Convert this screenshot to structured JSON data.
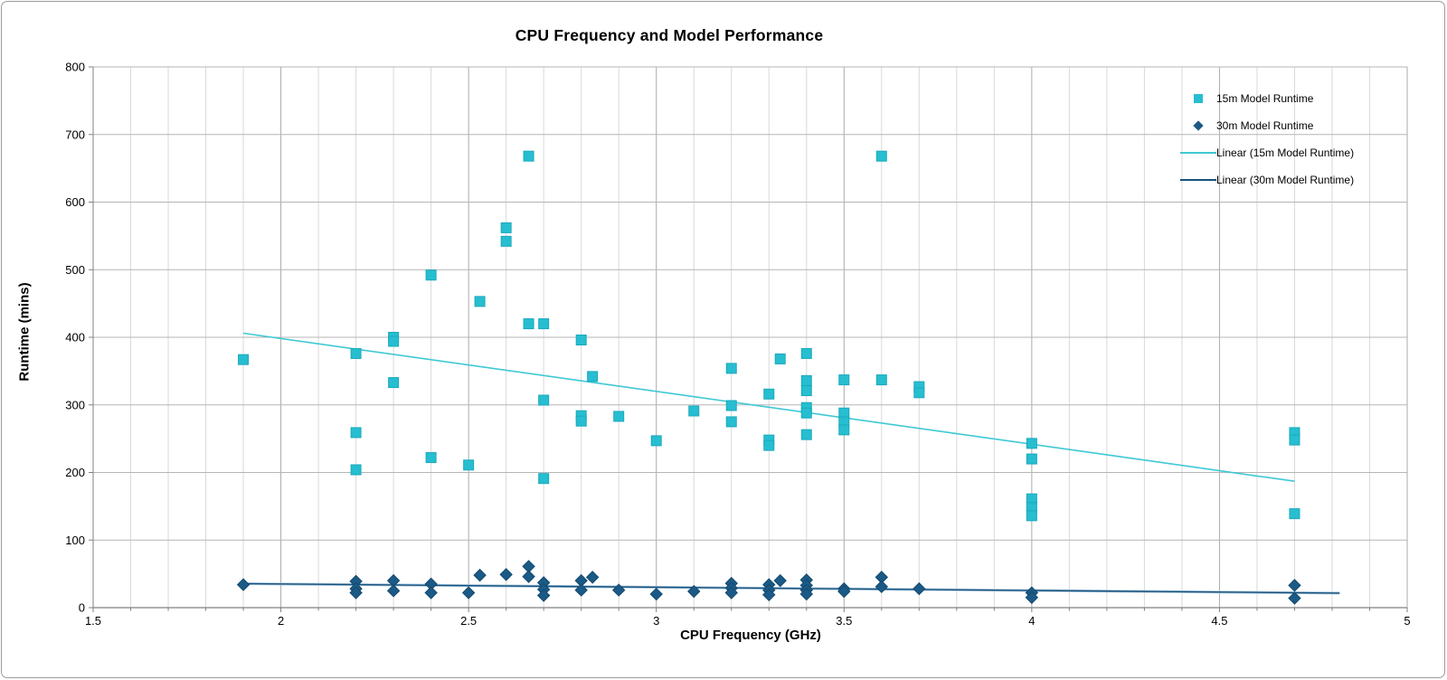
{
  "window": {
    "background": "#ffffff",
    "frame_border_color": "#9b9b9b"
  },
  "chart_data": {
    "type": "scatter",
    "title": "CPU Frequency and Model Performance",
    "xlabel": "CPU Frequency (GHz)",
    "ylabel": "Runtime (mins)",
    "xlim": [
      1.5,
      5
    ],
    "ylim": [
      0,
      800
    ],
    "x_major_step": 0.5,
    "x_minor_step": 0.1,
    "y_major_step": 100,
    "grid": true,
    "legend_position": "top-right",
    "x_ticks": [
      "1.5",
      "2",
      "2.5",
      "3",
      "3.5",
      "4",
      "4.5",
      "5"
    ],
    "y_ticks": [
      "0",
      "100",
      "200",
      "300",
      "400",
      "500",
      "600",
      "700",
      "800"
    ],
    "axis_colors": {
      "axis_line": "#808080",
      "major_grid": "#ababab",
      "minor_grid": "#d9d9d9",
      "horizontal_grid": "#b5b5b5"
    },
    "series": [
      {
        "name": "15m Model Runtime",
        "marker": "square",
        "fill": "#26bed0",
        "stroke": "#1ca9bd",
        "points": [
          [
            1.9,
            367
          ],
          [
            2.2,
            376
          ],
          [
            2.2,
            259
          ],
          [
            2.2,
            204
          ],
          [
            2.3,
            400
          ],
          [
            2.3,
            394
          ],
          [
            2.3,
            333
          ],
          [
            2.4,
            492
          ],
          [
            2.4,
            222
          ],
          [
            2.5,
            211
          ],
          [
            2.53,
            453
          ],
          [
            2.6,
            562
          ],
          [
            2.6,
            542
          ],
          [
            2.66,
            668
          ],
          [
            2.66,
            420
          ],
          [
            2.7,
            420
          ],
          [
            2.7,
            307
          ],
          [
            2.7,
            191
          ],
          [
            2.8,
            396
          ],
          [
            2.8,
            284
          ],
          [
            2.8,
            276
          ],
          [
            2.83,
            342
          ],
          [
            2.9,
            283
          ],
          [
            3.0,
            247
          ],
          [
            3.1,
            291
          ],
          [
            3.2,
            354
          ],
          [
            3.2,
            299
          ],
          [
            3.2,
            275
          ],
          [
            3.3,
            316
          ],
          [
            3.3,
            248
          ],
          [
            3.3,
            240
          ],
          [
            3.33,
            368
          ],
          [
            3.4,
            376
          ],
          [
            3.4,
            336
          ],
          [
            3.4,
            321
          ],
          [
            3.4,
            296
          ],
          [
            3.4,
            288
          ],
          [
            3.4,
            256
          ],
          [
            3.5,
            337
          ],
          [
            3.5,
            288
          ],
          [
            3.5,
            275
          ],
          [
            3.5,
            263
          ],
          [
            3.6,
            668
          ],
          [
            3.6,
            337
          ],
          [
            3.7,
            327
          ],
          [
            3.7,
            318
          ],
          [
            4.0,
            243
          ],
          [
            4.0,
            220
          ],
          [
            4.0,
            161
          ],
          [
            4.0,
            148
          ],
          [
            4.0,
            136
          ],
          [
            4.7,
            259
          ],
          [
            4.7,
            248
          ],
          [
            4.7,
            139
          ]
        ]
      },
      {
        "name": "30m Model Runtime",
        "marker": "diamond",
        "fill": "#1b5a86",
        "stroke": "#14496e",
        "points": [
          [
            1.9,
            34
          ],
          [
            2.2,
            39
          ],
          [
            2.2,
            28
          ],
          [
            2.2,
            22
          ],
          [
            2.3,
            40
          ],
          [
            2.3,
            25
          ],
          [
            2.4,
            35
          ],
          [
            2.4,
            22
          ],
          [
            2.5,
            22
          ],
          [
            2.53,
            48
          ],
          [
            2.6,
            49
          ],
          [
            2.66,
            61
          ],
          [
            2.66,
            46
          ],
          [
            2.7,
            37
          ],
          [
            2.7,
            27
          ],
          [
            2.7,
            18
          ],
          [
            2.8,
            40
          ],
          [
            2.8,
            26
          ],
          [
            2.83,
            45
          ],
          [
            2.9,
            26
          ],
          [
            3.0,
            20
          ],
          [
            3.1,
            24
          ],
          [
            3.2,
            36
          ],
          [
            3.2,
            29
          ],
          [
            3.2,
            22
          ],
          [
            3.3,
            34
          ],
          [
            3.3,
            26
          ],
          [
            3.3,
            19
          ],
          [
            3.33,
            40
          ],
          [
            3.4,
            41
          ],
          [
            3.4,
            33
          ],
          [
            3.4,
            26
          ],
          [
            3.4,
            20
          ],
          [
            3.5,
            28
          ],
          [
            3.5,
            24
          ],
          [
            3.6,
            45
          ],
          [
            3.6,
            31
          ],
          [
            3.7,
            28
          ],
          [
            4.0,
            22
          ],
          [
            4.0,
            15
          ],
          [
            4.7,
            33
          ],
          [
            4.7,
            14
          ]
        ]
      }
    ],
    "trendlines": [
      {
        "name": "Linear (15m Model Runtime)",
        "color": "#3fc8d4",
        "width": 1.6,
        "start": [
          1.9,
          406
        ],
        "end": [
          4.7,
          187
        ]
      },
      {
        "name": "Linear (30m Model Runtime)",
        "color": "#16517c",
        "width": 1.4,
        "halo_color": "#a7c6de",
        "halo_width": 3,
        "start": [
          1.9,
          35.5
        ],
        "end": [
          4.82,
          21.5
        ]
      }
    ],
    "legend": {
      "items": [
        {
          "label": "15m Model Runtime",
          "swatch": "square",
          "color": "#26bed0"
        },
        {
          "label": "30m Model Runtime",
          "swatch": "diamond",
          "color": "#1b5a86"
        },
        {
          "label": "Linear (15m Model Runtime)",
          "swatch": "line",
          "color": "#3fc8d4"
        },
        {
          "label": "Linear (30m Model Runtime)",
          "swatch": "line",
          "color": "#16517c"
        }
      ]
    }
  }
}
